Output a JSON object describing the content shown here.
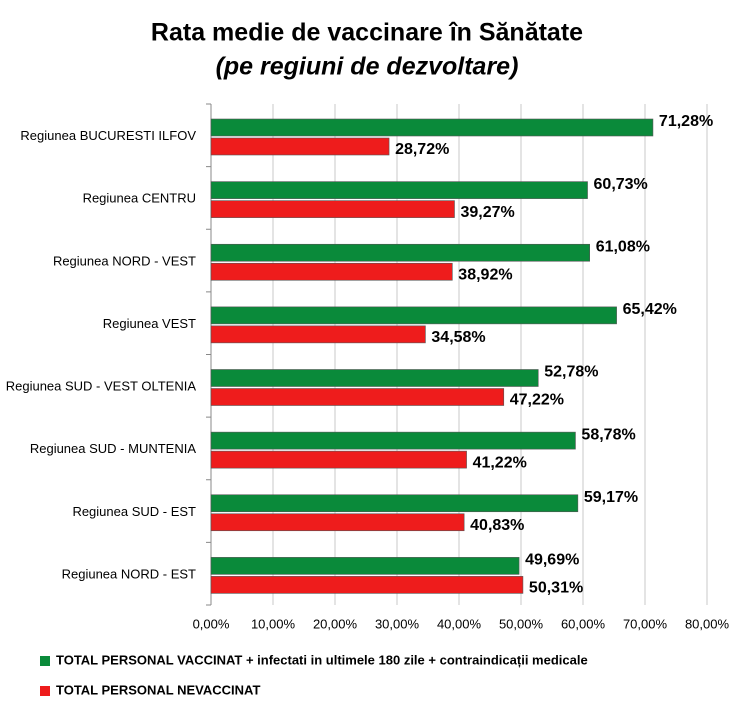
{
  "chart_data": {
    "type": "hbar",
    "title": "Rata medie de vaccinare în Sănătate",
    "subtitle": "(pe regiuni de dezvoltare)",
    "categories": [
      "Regiunea BUCURESTI ILFOV",
      "Regiunea CENTRU",
      "Regiunea NORD - VEST",
      "Regiunea VEST",
      "Regiunea SUD - VEST OLTENIA",
      "Regiunea SUD - MUNTENIA",
      "Regiunea SUD - EST",
      "Regiunea NORD - EST"
    ],
    "series": [
      {
        "name": "TOTAL PERSONAL VACCINAT + infectati in ultimele 180 zile + contraindicații medicale",
        "color": "#0a8a3a",
        "values": [
          71.28,
          60.73,
          61.08,
          65.42,
          52.78,
          58.78,
          59.17,
          49.69
        ],
        "value_labels": [
          "71,28%",
          "60,73%",
          "61,08%",
          "65,42%",
          "52,78%",
          "58,78%",
          "59,17%",
          "49,69%"
        ]
      },
      {
        "name": "TOTAL PERSONAL NEVACCINAT",
        "color": "#ee1c1c",
        "values": [
          28.72,
          39.27,
          38.92,
          34.58,
          47.22,
          41.22,
          40.83,
          50.31
        ],
        "value_labels": [
          "28,72%",
          "39,27%",
          "38,92%",
          "34,58%",
          "47,22%",
          "41,22%",
          "40,83%",
          "50,31%"
        ]
      }
    ],
    "xlim": [
      0,
      80
    ],
    "xticks": [
      {
        "value": 0,
        "label": "0,00%"
      },
      {
        "value": 10,
        "label": "10,00%"
      },
      {
        "value": 20,
        "label": "20,00%"
      },
      {
        "value": 30,
        "label": "30,00%"
      },
      {
        "value": 40,
        "label": "40,00%"
      },
      {
        "value": 50,
        "label": "50,00%"
      },
      {
        "value": 60,
        "label": "60,00%"
      },
      {
        "value": 70,
        "label": "70,00%"
      },
      {
        "value": 80,
        "label": "80,00%"
      }
    ],
    "grid": true
  }
}
